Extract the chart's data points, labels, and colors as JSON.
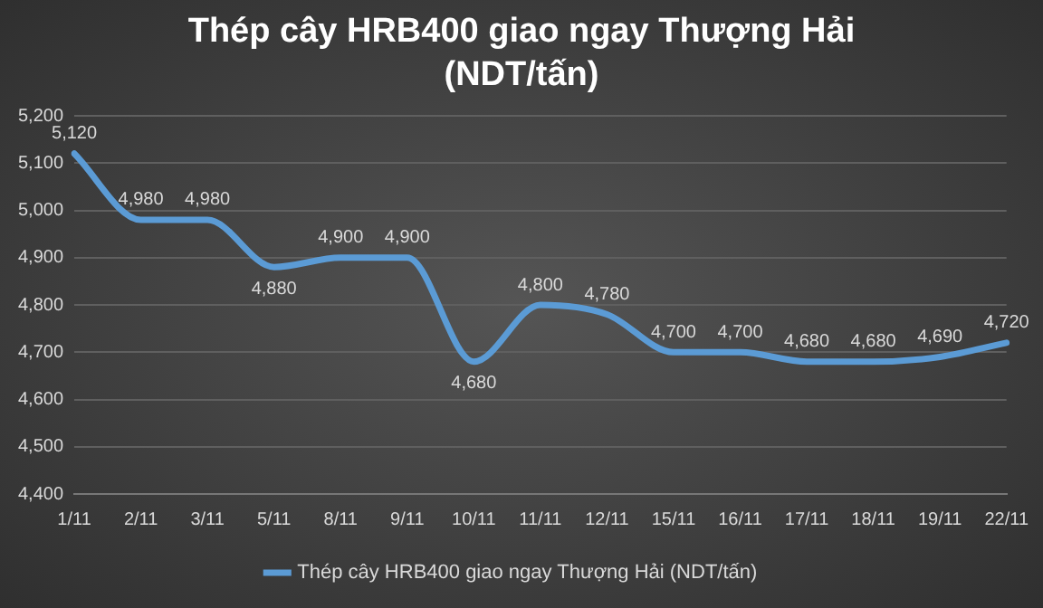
{
  "chart_data": {
    "type": "line",
    "title": "Thép cây HRB400 giao ngay Thượng Hải (NDT/tấn)",
    "categories": [
      "1/11",
      "2/11",
      "3/11",
      "5/11",
      "8/11",
      "9/11",
      "10/11",
      "11/11",
      "12/11",
      "15/11",
      "16/11",
      "17/11",
      "18/11",
      "19/11",
      "22/11"
    ],
    "series": [
      {
        "name": "Thép cây HRB400 giao ngay Thượng Hải (NDT/tấn)",
        "color": "#5b9bd5",
        "values": [
          5120,
          4980,
          4980,
          4880,
          4900,
          4900,
          4680,
          4800,
          4780,
          4700,
          4700,
          4680,
          4680,
          4690,
          4720
        ],
        "value_labels": [
          "5,120",
          "4,980",
          "4,980",
          "4,880",
          "4,900",
          "4,900",
          "4,680",
          "4,800",
          "4,780",
          "4,700",
          "4,700",
          "4,680",
          "4,680",
          "4,690",
          "4,720"
        ]
      }
    ],
    "ylim": [
      4400,
      5200
    ],
    "yticks": [
      {
        "value": 4400,
        "label": "4,400"
      },
      {
        "value": 4500,
        "label": "4,500"
      },
      {
        "value": 4600,
        "label": "4,600"
      },
      {
        "value": 4700,
        "label": "4,700"
      },
      {
        "value": 4800,
        "label": "4,800"
      },
      {
        "value": 4900,
        "label": "4,900"
      },
      {
        "value": 5000,
        "label": "5,000"
      },
      {
        "value": 5100,
        "label": "5,100"
      },
      {
        "value": 5200,
        "label": "5,200"
      }
    ],
    "grid": "y",
    "legend": "bottom",
    "marker": "none",
    "line_style": "solid"
  }
}
